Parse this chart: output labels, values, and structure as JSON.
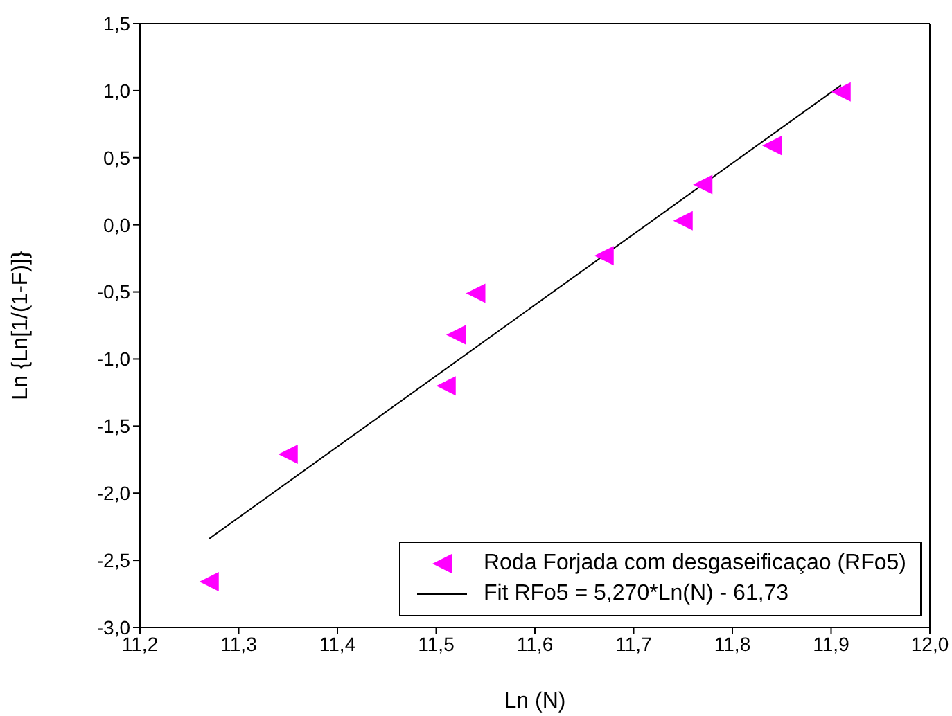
{
  "chart_data": {
    "type": "scatter",
    "xlabel": "Ln (N)",
    "ylabel": "Ln {Ln[1/(1-F)]}",
    "xlim": [
      11.2,
      12.0
    ],
    "xticks": [
      {
        "value": 11.2,
        "label": "11,2"
      },
      {
        "value": 11.3,
        "label": "11,3"
      },
      {
        "value": 11.4,
        "label": "11,4"
      },
      {
        "value": 11.5,
        "label": "11,5"
      },
      {
        "value": 11.6,
        "label": "11,6"
      },
      {
        "value": 11.7,
        "label": "11,7"
      },
      {
        "value": 11.8,
        "label": "11,8"
      },
      {
        "value": 11.9,
        "label": "11,9"
      },
      {
        "value": 12.0,
        "label": "12,0"
      }
    ],
    "ylim": [
      -3.0,
      1.5
    ],
    "yticks": [
      {
        "value": -3.0,
        "label": "-3,0"
      },
      {
        "value": -2.5,
        "label": "-2,5"
      },
      {
        "value": -2.0,
        "label": "-2,0"
      },
      {
        "value": -1.5,
        "label": "-1,5"
      },
      {
        "value": -1.0,
        "label": "-1,0"
      },
      {
        "value": -0.5,
        "label": "-0,5"
      },
      {
        "value": 0.0,
        "label": "0,0"
      },
      {
        "value": 0.5,
        "label": "0,5"
      },
      {
        "value": 1.0,
        "label": "1,0"
      },
      {
        "value": 1.5,
        "label": "1,5"
      }
    ],
    "grid": false,
    "legend": "bottom right",
    "series": [
      {
        "name": "Roda Forjada com desgaseificaçao (RFo5)",
        "color": "#ff00ff",
        "marker": "triangle",
        "x": [
          11.27,
          11.35,
          11.51,
          11.52,
          11.54,
          11.67,
          11.75,
          11.77,
          11.84,
          11.91
        ],
        "values": [
          -2.66,
          -1.71,
          -1.2,
          -0.82,
          -0.51,
          -0.23,
          0.03,
          0.3,
          0.59,
          0.99
        ]
      },
      {
        "type": "line",
        "name": "Fit RFo5 = 5,270*Ln(N) - 61,73",
        "color": "#000000",
        "x": [
          11.27,
          11.91
        ],
        "values": [
          -2.34,
          1.04
        ]
      }
    ]
  }
}
